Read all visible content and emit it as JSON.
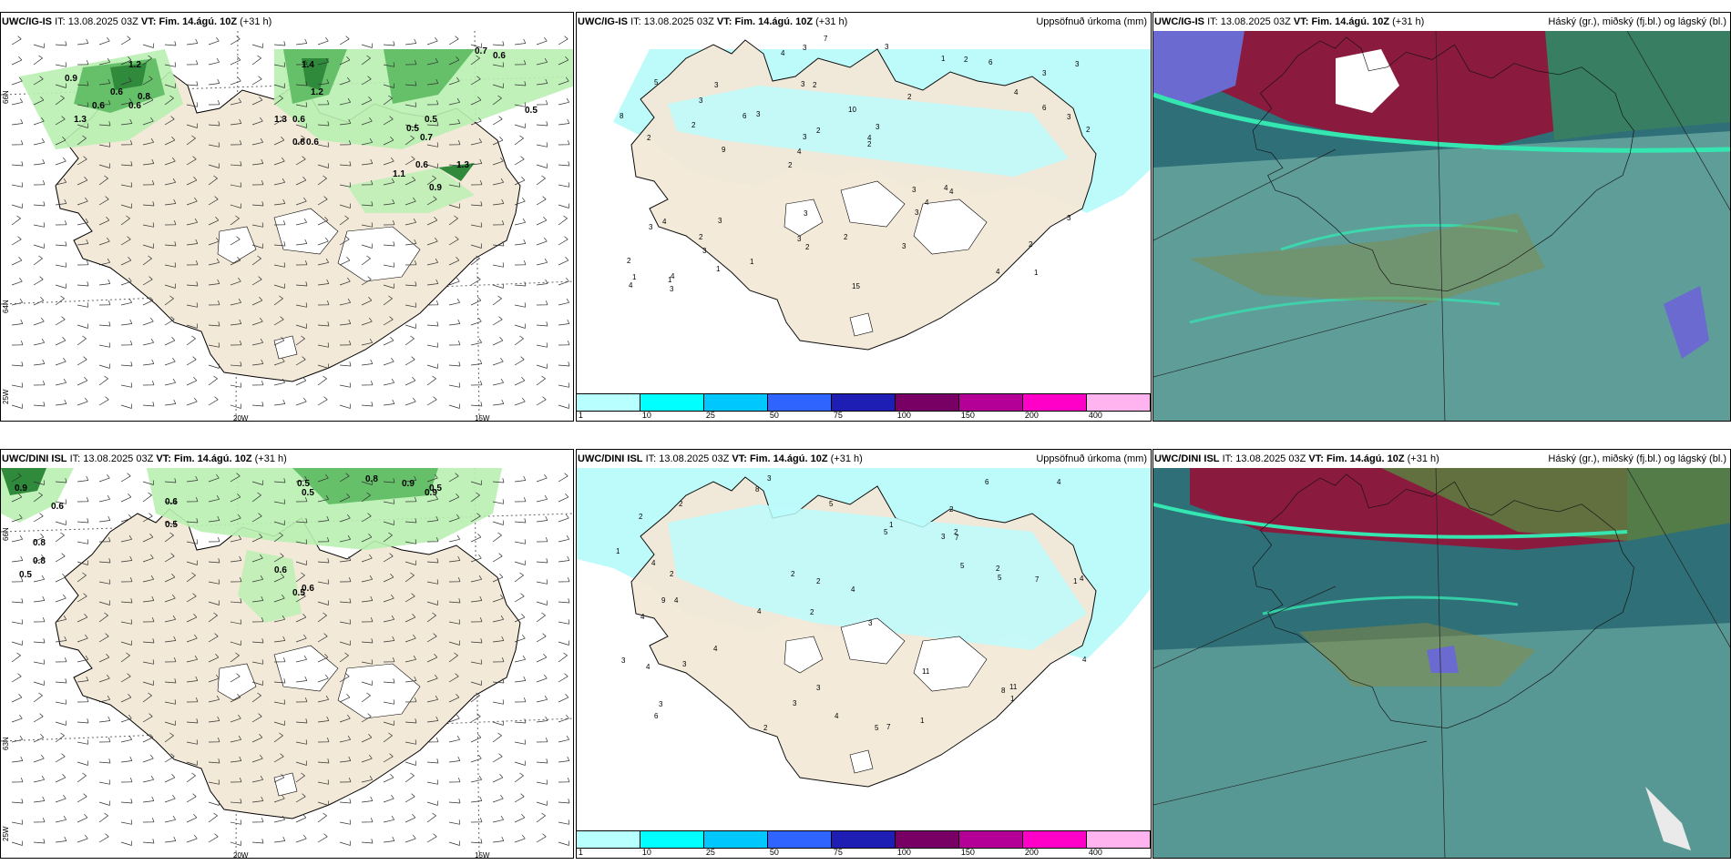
{
  "rows": [
    {
      "model": "UWC/IG-IS",
      "panels": [
        {
          "model": "UWC/IG-IS",
          "it_label": "IT:",
          "it": "13.08.2025 03Z",
          "vt_label": "VT:",
          "vt": "Fim. 14.ágú. 10Z",
          "lead": "(+31 h)",
          "right": ""
        },
        {
          "model": "UWC/IG-IS",
          "it_label": "IT:",
          "it": "13.08.2025 03Z",
          "vt_label": "VT:",
          "vt": "Fim. 14.ágú. 10Z",
          "lead": "(+31 h)",
          "right": "Uppsöfnuð úrkoma (mm)"
        },
        {
          "model": "UWC/IG-IS",
          "it_label": "IT:",
          "it": "13.08.2025 03Z",
          "vt_label": "VT:",
          "vt": "Fim. 14.ágú. 10Z",
          "lead": "(+31 h)",
          "right": "Háský (gr.), miðský (fj.bl.) og lágský (bl.)"
        }
      ],
      "precip_values": [
        "1",
        "2",
        "3",
        "2",
        "2",
        "4",
        "3",
        "10",
        "4",
        "3",
        "2",
        "3",
        "2",
        "3",
        "4",
        "5",
        "3",
        "2",
        "3",
        "6",
        "4",
        "3",
        "3",
        "3",
        "1",
        "3",
        "4",
        "2",
        "4",
        "15",
        "6",
        "2",
        "3",
        "1",
        "3",
        "4",
        "1",
        "2",
        "2",
        "3",
        "4",
        "3",
        "4",
        "3",
        "2",
        "3",
        "4",
        "2",
        "6",
        "7",
        "9",
        "8",
        "3",
        "2",
        "1",
        "3",
        "4",
        "2",
        "3",
        "3",
        "1"
      ],
      "wind_labels": [
        "0.9",
        "1.2",
        "0.6",
        "0.8",
        "0.6",
        "1.3",
        "0.6",
        "1.4",
        "1.2",
        "0.7",
        "0.6",
        "0.5",
        "0.5",
        "0.7",
        "1.3",
        "0.6",
        "0.8",
        "0.6",
        "0.6",
        "1.1",
        "0.9",
        "1.3",
        "0.5"
      ],
      "cbar_ticks": [
        "1",
        "10",
        "25",
        "50",
        "75",
        "100",
        "150",
        "200",
        "400"
      ]
    },
    {
      "model": "UWC/DINI ISL",
      "panels": [
        {
          "model": "UWC/DINI ISL",
          "it_label": "IT:",
          "it": "13.08.2025 03Z",
          "vt_label": "VT:",
          "vt": "Fim. 14.ágú. 10Z",
          "lead": "(+31 h)",
          "right": ""
        },
        {
          "model": "UWC/DINI ISL",
          "it_label": "IT:",
          "it": "13.08.2025 03Z",
          "vt_label": "VT:",
          "vt": "Fim. 14.ágú. 10Z",
          "lead": "(+31 h)",
          "right": "Uppsöfnuð úrkoma (mm)"
        },
        {
          "model": "UWC/DINI ISL",
          "it_label": "IT:",
          "it": "13.08.2025 03Z",
          "vt_label": "VT:",
          "vt": "Fim. 14.ágú. 10Z",
          "lead": "(+31 h)",
          "right": "Háský (gr.), miðský (fj.bl.) og lágský (bl.)"
        }
      ],
      "precip_values": [
        "3",
        "2",
        "1",
        "2",
        "3",
        "4",
        "2",
        "3",
        "4",
        "5",
        "4",
        "6",
        "8",
        "4",
        "5",
        "7",
        "3",
        "6",
        "5",
        "4",
        "2",
        "9",
        "4",
        "7",
        "3",
        "4",
        "2",
        "5",
        "11",
        "4",
        "8",
        "1",
        "3",
        "2",
        "11",
        "4",
        "2",
        "3",
        "4",
        "5",
        "3",
        "2",
        "1",
        "2",
        "4",
        "7",
        "1",
        "2",
        "1"
      ],
      "wind_labels": [
        "0.9",
        "0.6",
        "0.6",
        "0.5",
        "0.8",
        "0.8",
        "0.5",
        "0.8",
        "0.9",
        "0.9",
        "0.5",
        "0.5",
        "0.5",
        "0.6",
        "0.6",
        "0.5"
      ],
      "cbar_ticks": [
        "1",
        "10",
        "25",
        "50",
        "75",
        "100",
        "150",
        "200",
        "400"
      ]
    }
  ],
  "axis_labels": {
    "lon_20w": "20W",
    "lon_15w": "15W",
    "lat_66n": "66N",
    "lat_64n": "64N",
    "lat_63n": "63N",
    "lon_25w": "25W"
  },
  "colors": {
    "land": "#f3e9d8",
    "precip_light": "#bdfbfb",
    "green_light": "#b8f0b0",
    "green_mid": "#66c06a",
    "green_dark": "#2f8a3c",
    "cloud_base": "#2f6f78",
    "cloud_low": "#6aa9a0",
    "cloud_high_red": "#8b1a3f",
    "cloud_blue": "#6a6ad0",
    "cloud_cyan": "#34e6b0",
    "cbar": [
      "#b8ffff",
      "#00ffff",
      "#00c8ff",
      "#3064ff",
      "#1e1eb4",
      "#780064",
      "#b40096",
      "#ff00c8",
      "#ffb4f0"
    ]
  }
}
